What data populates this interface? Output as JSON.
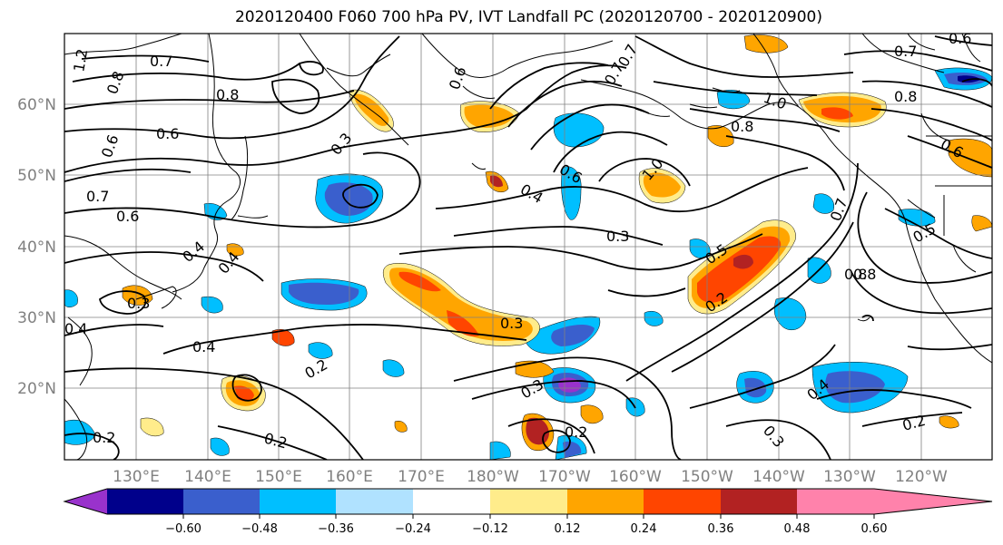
{
  "title": "2020120400 F060 700 hPa PV, IVT Landfall PC (2020120700 - 2020120900)",
  "lat_labels": [
    "60°N",
    "50°N",
    "40°N",
    "30°N",
    "20°N"
  ],
  "lon_labels": [
    "130°E",
    "140°E",
    "150°E",
    "160°E",
    "170°E",
    "180°W",
    "170°W",
    "160°W",
    "150°W",
    "140°W",
    "130°W",
    "120°W"
  ],
  "colorbar": {
    "ticks": [
      "−0.60",
      "−0.48",
      "−0.36",
      "−0.24",
      "−0.12",
      "0.12",
      "0.24",
      "0.36",
      "0.48",
      "0.60"
    ],
    "colors": [
      "#9932cc",
      "#00008b",
      "#3a5fcd",
      "#00bfff",
      "#b0e2ff",
      "#ffffff",
      "#ffec8b",
      "#ffa500",
      "#ff4500",
      "#b22222",
      "#ff82ab"
    ]
  },
  "contour_labels": [
    "1.2",
    "0.7",
    "0.8",
    "0.6",
    "0.8",
    "0.7",
    "0.6",
    "0.6",
    "0.3",
    "0.7",
    "0.8",
    "0.6",
    "0.4",
    "0.6",
    "1.0",
    "0.8",
    "0.7",
    "1.0",
    "0.8",
    "0.7",
    "0.4",
    "0.4",
    "0.3",
    "0.3",
    "0.4",
    "0.4",
    "0.2",
    "0.3",
    "0.5",
    "0.2",
    "0.8",
    "0.5",
    "0.3",
    "0.2",
    "0.2",
    "0.3",
    "0.4",
    "0.2",
    "0.2",
    "0.6",
    "0.6",
    "0.7"
  ],
  "colors": {
    "map_frame": "#000000",
    "gridline": "#808080",
    "contour": "#000000"
  }
}
